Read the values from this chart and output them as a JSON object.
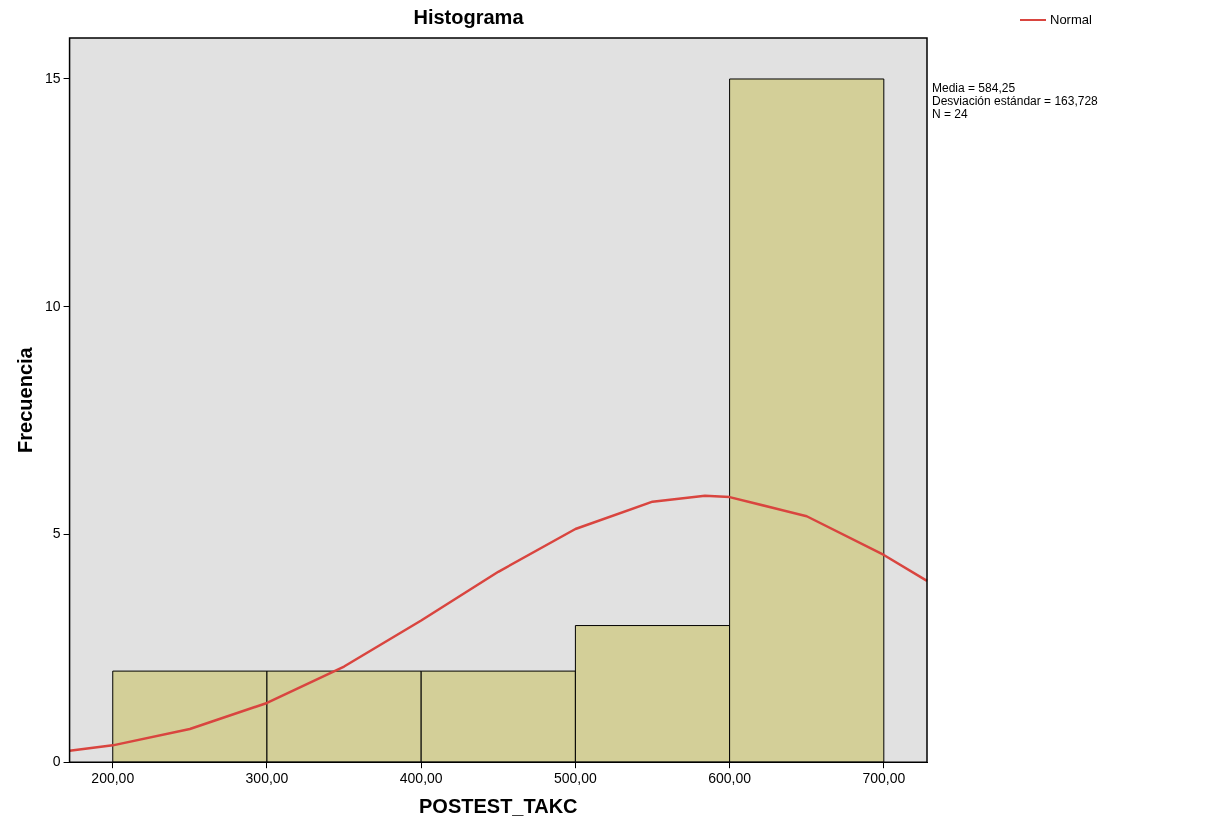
{
  "chart_data": {
    "type": "histogram",
    "title": "Histograma",
    "xlabel": "POSTEST_TAKC",
    "ylabel": "Frecuencia",
    "bins": [
      200,
      300,
      400,
      500,
      600,
      700
    ],
    "values": [
      2,
      2,
      2,
      3,
      15
    ],
    "color": "#d3cf98",
    "xlim": [
      172,
      728
    ],
    "ylim": [
      0,
      15.9
    ],
    "xticks": [
      {
        "value": 200,
        "label": "200,00"
      },
      {
        "value": 300,
        "label": "300,00"
      },
      {
        "value": 400,
        "label": "400,00"
      },
      {
        "value": 500,
        "label": "500,00"
      },
      {
        "value": 600,
        "label": "600,00"
      },
      {
        "value": 700,
        "label": "700,00"
      }
    ],
    "yticks": [
      0,
      5,
      10,
      15
    ],
    "grid": false,
    "legend": "top right",
    "series": [
      {
        "name": "Normal",
        "type": "line",
        "color": "#d9453f",
        "x": [
          172,
          200,
          250,
          300,
          350,
          400,
          450,
          500,
          550,
          584,
          600,
          650,
          700,
          728
        ],
        "values": [
          0.25,
          0.37,
          0.73,
          1.3,
          2.1,
          3.11,
          4.18,
          5.12,
          5.72,
          5.85,
          5.82,
          5.4,
          4.55,
          3.98
        ]
      }
    ],
    "annotations": [
      "Media = 584,25",
      "Desviación estándar = 163,728",
      "N = 24"
    ]
  }
}
